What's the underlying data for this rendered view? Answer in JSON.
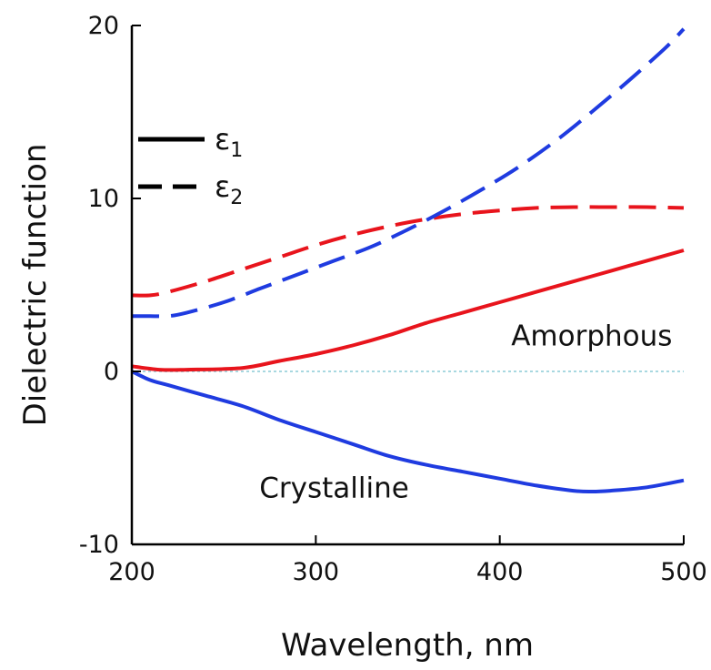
{
  "chart_data": {
    "type": "line",
    "xlabel": "Wavelength, nm",
    "ylabel": "Dielectric function",
    "xlim": [
      200,
      500
    ],
    "ylim": [
      -10,
      20
    ],
    "x_ticks": [
      "200",
      "300",
      "400",
      "500"
    ],
    "y_ticks": [
      "-10",
      "0",
      "10",
      "20"
    ],
    "legend": {
      "placement": "top-left",
      "entries": [
        {
          "symbol": "ε",
          "subscript": "1",
          "style": "solid"
        },
        {
          "symbol": "ε",
          "subscript": "2",
          "style": "dashed"
        }
      ]
    },
    "zero_line": {
      "y": 0,
      "color": "#a8d8e0",
      "style": "dotted"
    },
    "annotations": [
      {
        "text": "Amorphous",
        "color": "#e8141c",
        "x": 450,
        "y": 1.5
      },
      {
        "text": "Crystalline",
        "color": "#1f3be0",
        "x": 310,
        "y": -7.3
      }
    ],
    "series": [
      {
        "material": "Amorphous",
        "component": "ε1",
        "style": "solid",
        "color": "#e8141c",
        "x": [
          200,
          215,
          230,
          260,
          280,
          300,
          320,
          340,
          360,
          380,
          400,
          420,
          440,
          460,
          480,
          500
        ],
        "y": [
          0.3,
          0.1,
          0.1,
          0.2,
          0.6,
          1.0,
          1.5,
          2.1,
          2.8,
          3.4,
          4.0,
          4.6,
          5.2,
          5.8,
          6.4,
          7.0
        ]
      },
      {
        "material": "Amorphous",
        "component": "ε2",
        "style": "dashed",
        "color": "#e8141c",
        "x": [
          200,
          210,
          220,
          240,
          260,
          280,
          300,
          320,
          340,
          360,
          380,
          400,
          420,
          440,
          460,
          480,
          500
        ],
        "y": [
          4.4,
          4.4,
          4.6,
          5.2,
          5.9,
          6.6,
          7.3,
          7.9,
          8.4,
          8.8,
          9.1,
          9.3,
          9.45,
          9.5,
          9.5,
          9.5,
          9.45
        ]
      },
      {
        "material": "Crystalline",
        "component": "ε1",
        "style": "solid",
        "color": "#1f3be0",
        "x": [
          200,
          210,
          220,
          240,
          260,
          280,
          300,
          320,
          340,
          360,
          380,
          400,
          420,
          440,
          450,
          460,
          480,
          500
        ],
        "y": [
          0.0,
          -0.5,
          -0.8,
          -1.4,
          -2.0,
          -2.8,
          -3.5,
          -4.2,
          -4.9,
          -5.4,
          -5.8,
          -6.2,
          -6.6,
          -6.9,
          -6.95,
          -6.9,
          -6.7,
          -6.3
        ]
      },
      {
        "material": "Crystalline",
        "component": "ε2",
        "style": "dashed",
        "color": "#1f3be0",
        "x": [
          200,
          210,
          220,
          230,
          250,
          270,
          290,
          310,
          330,
          350,
          370,
          390,
          410,
          430,
          450,
          470,
          490,
          500
        ],
        "y": [
          3.2,
          3.2,
          3.2,
          3.4,
          4.0,
          4.8,
          5.6,
          6.4,
          7.2,
          8.2,
          9.3,
          10.5,
          11.8,
          13.3,
          15.0,
          16.8,
          18.7,
          19.8
        ]
      }
    ]
  }
}
